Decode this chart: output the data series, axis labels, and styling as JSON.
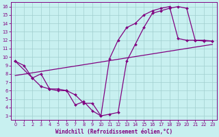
{
  "xlabel": "Windchill (Refroidissement éolien,°C)",
  "background_color": "#c8f0f0",
  "line_color": "#800080",
  "grid_color": "#a0cece",
  "xlim": [
    -0.5,
    23.5
  ],
  "ylim": [
    2.5,
    16.5
  ],
  "xticks": [
    0,
    1,
    2,
    3,
    4,
    5,
    6,
    7,
    8,
    9,
    10,
    11,
    12,
    13,
    14,
    15,
    16,
    17,
    18,
    19,
    20,
    21,
    22,
    23
  ],
  "yticks": [
    3,
    4,
    5,
    6,
    7,
    8,
    9,
    10,
    11,
    12,
    13,
    14,
    15,
    16
  ],
  "line1_x": [
    0,
    1,
    2,
    3,
    4,
    5,
    6,
    7,
    8,
    9,
    10,
    11,
    12,
    13,
    14,
    15,
    16,
    17,
    18,
    19,
    20,
    21,
    22,
    23
  ],
  "line1_y": [
    9.5,
    9.0,
    7.5,
    8.0,
    6.2,
    6.0,
    6.0,
    5.5,
    4.5,
    4.5,
    3.0,
    3.2,
    3.4,
    9.5,
    11.5,
    13.5,
    15.2,
    15.5,
    15.8,
    16.0,
    15.8,
    12.0,
    11.9,
    11.9
  ],
  "line2_x": [
    0,
    2,
    3,
    4,
    5,
    6,
    7,
    8,
    9,
    10,
    11,
    12,
    13,
    14,
    15,
    16,
    17,
    18,
    19,
    20,
    21,
    22,
    23
  ],
  "line2_y": [
    9.5,
    7.5,
    6.5,
    6.2,
    6.2,
    6.0,
    4.3,
    4.7,
    3.6,
    3.0,
    9.8,
    12.0,
    13.5,
    14.0,
    15.0,
    15.5,
    15.8,
    16.0,
    12.2,
    12.0,
    12.0,
    12.0,
    11.9
  ],
  "line3_x": [
    0,
    23
  ],
  "line3_y": [
    7.8,
    11.5
  ]
}
